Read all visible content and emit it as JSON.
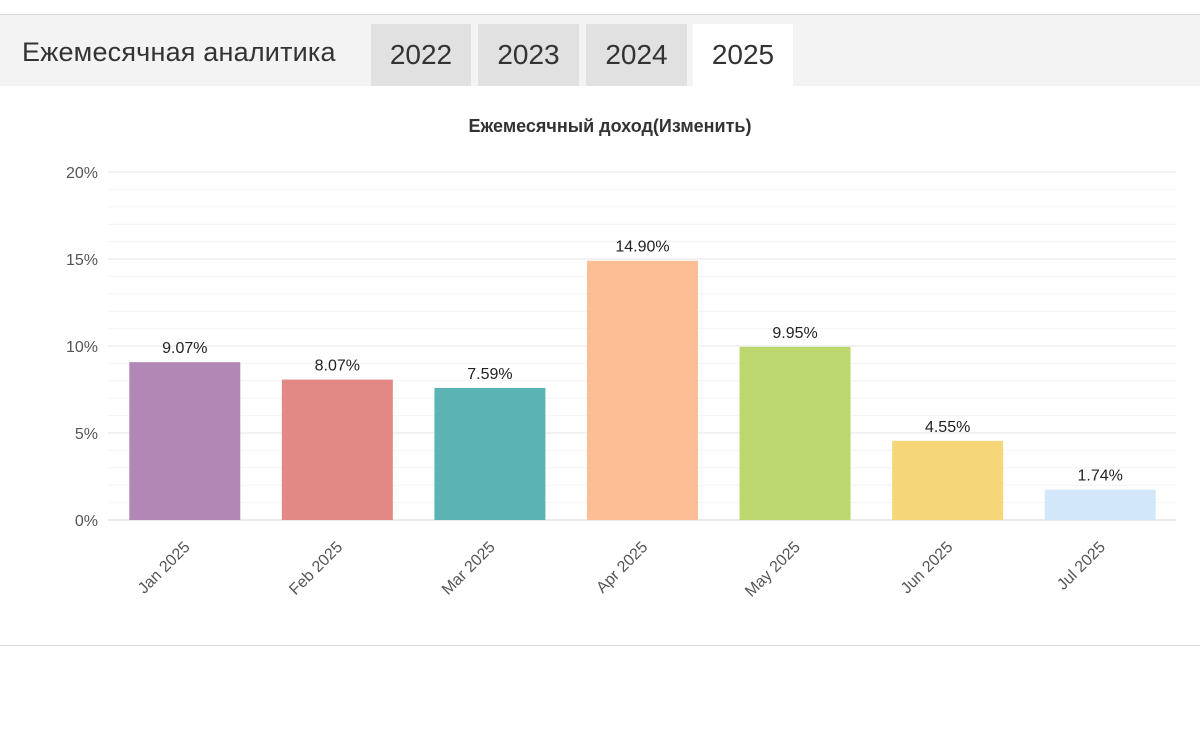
{
  "header": {
    "title": "Ежемесячная аналитика",
    "tabs": [
      {
        "label": "2022",
        "active": false
      },
      {
        "label": "2023",
        "active": false
      },
      {
        "label": "2024",
        "active": false
      },
      {
        "label": "2025",
        "active": true
      }
    ]
  },
  "chart_data": {
    "type": "bar",
    "title": "Ежемесячный доход(Изменить)",
    "xlabel": "",
    "ylabel": "",
    "categories": [
      "Jan 2025",
      "Feb 2025",
      "Mar 2025",
      "Apr 2025",
      "May 2025",
      "Jun 2025",
      "Jul 2025"
    ],
    "values": [
      9.07,
      8.07,
      7.59,
      14.9,
      9.95,
      4.55,
      1.74
    ],
    "value_labels": [
      "9.07%",
      "8.07%",
      "7.59%",
      "14.90%",
      "9.95%",
      "4.55%",
      "1.74%"
    ],
    "colors": [
      "#b387b5",
      "#e38985",
      "#5bb3b3",
      "#fdbe95",
      "#bdd76f",
      "#f5d77a",
      "#d2e8f8"
    ],
    "ylim": [
      0,
      20
    ],
    "yticks": [
      0,
      5,
      10,
      15,
      20
    ],
    "ytick_labels": [
      "0%",
      "5%",
      "10%",
      "15%",
      "20%"
    ],
    "grid": true,
    "legend": "none"
  }
}
